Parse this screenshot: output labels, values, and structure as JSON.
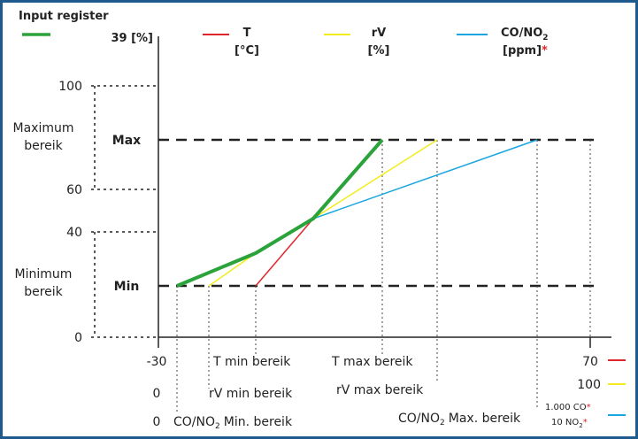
{
  "chart_data": {
    "type": "line",
    "legend": {
      "input": [
        "Input register",
        "39 [%]"
      ],
      "t": [
        "T",
        "[°C]"
      ],
      "rv": [
        "rV",
        "[%]"
      ],
      "co_a": "CO/NO",
      "co_sub": "2",
      "co_b": "[ppm]",
      "star": "*"
    },
    "y_ticks": [
      "100",
      "60",
      "40",
      "0"
    ],
    "y_ranges": {
      "max": [
        "Maximum",
        "bereik"
      ],
      "min": [
        "Minimum",
        "bereik"
      ],
      "max_label": "Max",
      "min_label": "Min"
    },
    "x_labels": {
      "t_min_val": "-30",
      "t_min": "T min bereik",
      "t_max": "T max bereik",
      "t_end": "70",
      "rv_min_val": "0",
      "rv_min": "rV min bereik",
      "rv_max": "rV max bereik",
      "rv_end": "100",
      "co_min_val": "0",
      "co_min_a": "CO/NO",
      "co_min_b": "Min. bereik",
      "co_max_a": "CO/NO",
      "co_max_b": "Max. bereik",
      "co_end_1": "1.000 CO",
      "co_end_2a": "10 NO",
      "co_end_2b": "*",
      "sub2": "2",
      "star": "*"
    },
    "levels": {
      "min_pct": 20,
      "max_pct": 80,
      "cross_pct": 46
    },
    "colors": {
      "input": "#2aa33a",
      "t": "#e0262b",
      "rv": "#f2ec1c",
      "co": "#1aa6e0"
    }
  }
}
